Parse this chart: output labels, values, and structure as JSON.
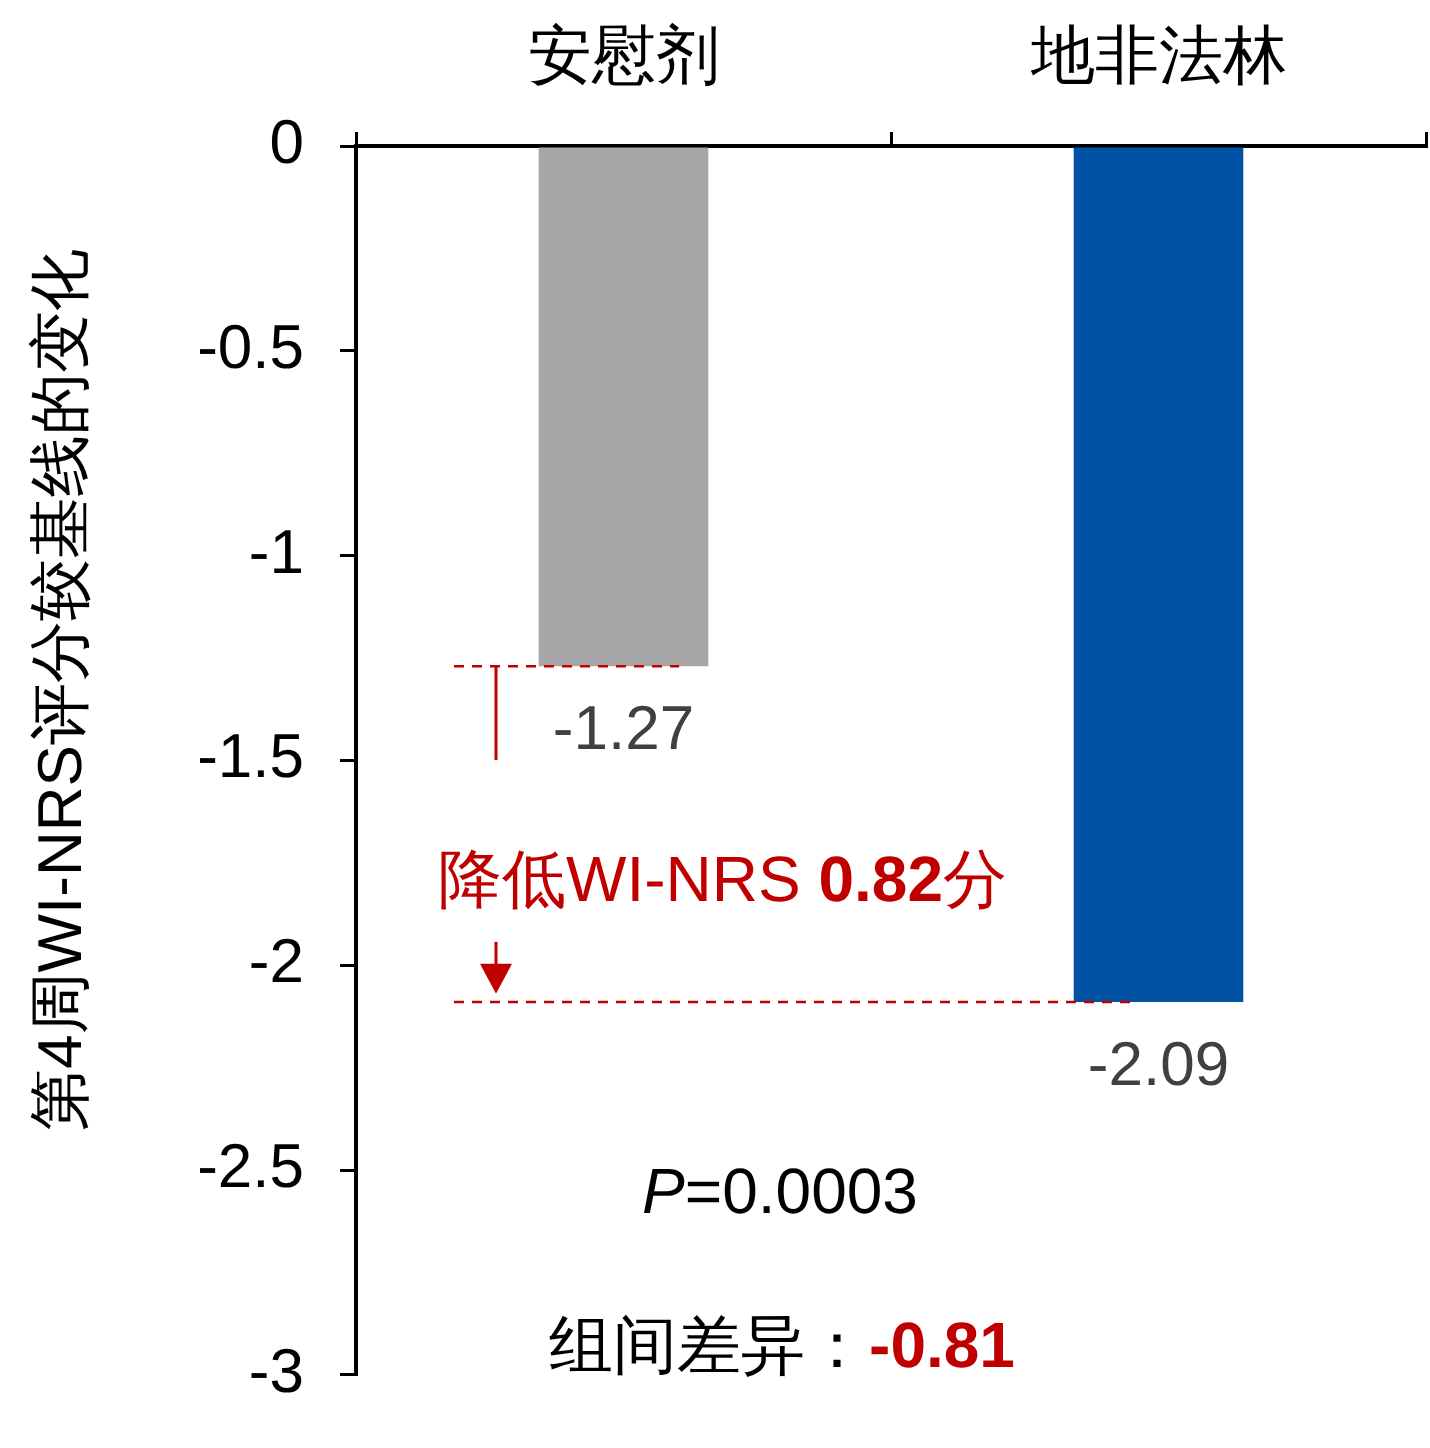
{
  "chart_data": {
    "type": "bar",
    "categories": [
      "安慰剂",
      "地非法林"
    ],
    "values": [
      -1.27,
      -2.09
    ],
    "colors": [
      "#a6a6a6",
      "#0053a4"
    ],
    "ylabel": "第4周WI-NRS评分较基线的变化",
    "ylim": [
      -3,
      0
    ],
    "yticks": [
      -3,
      -2.5,
      -2,
      -1.5,
      -1,
      -0.5,
      0
    ],
    "data_labels": true,
    "ref_lines": [
      {
        "axis": "y",
        "value": -1.27,
        "color": "#c00000",
        "line_style": "dashed"
      },
      {
        "axis": "y",
        "value": -2.09,
        "color": "#c00000",
        "line_style": "dashed"
      }
    ],
    "annotations": [
      {
        "text": "降低WI-NRS 0.82分",
        "y": -2.09
      },
      "P=0.0003",
      "组间差异：-0.81"
    ]
  }
}
